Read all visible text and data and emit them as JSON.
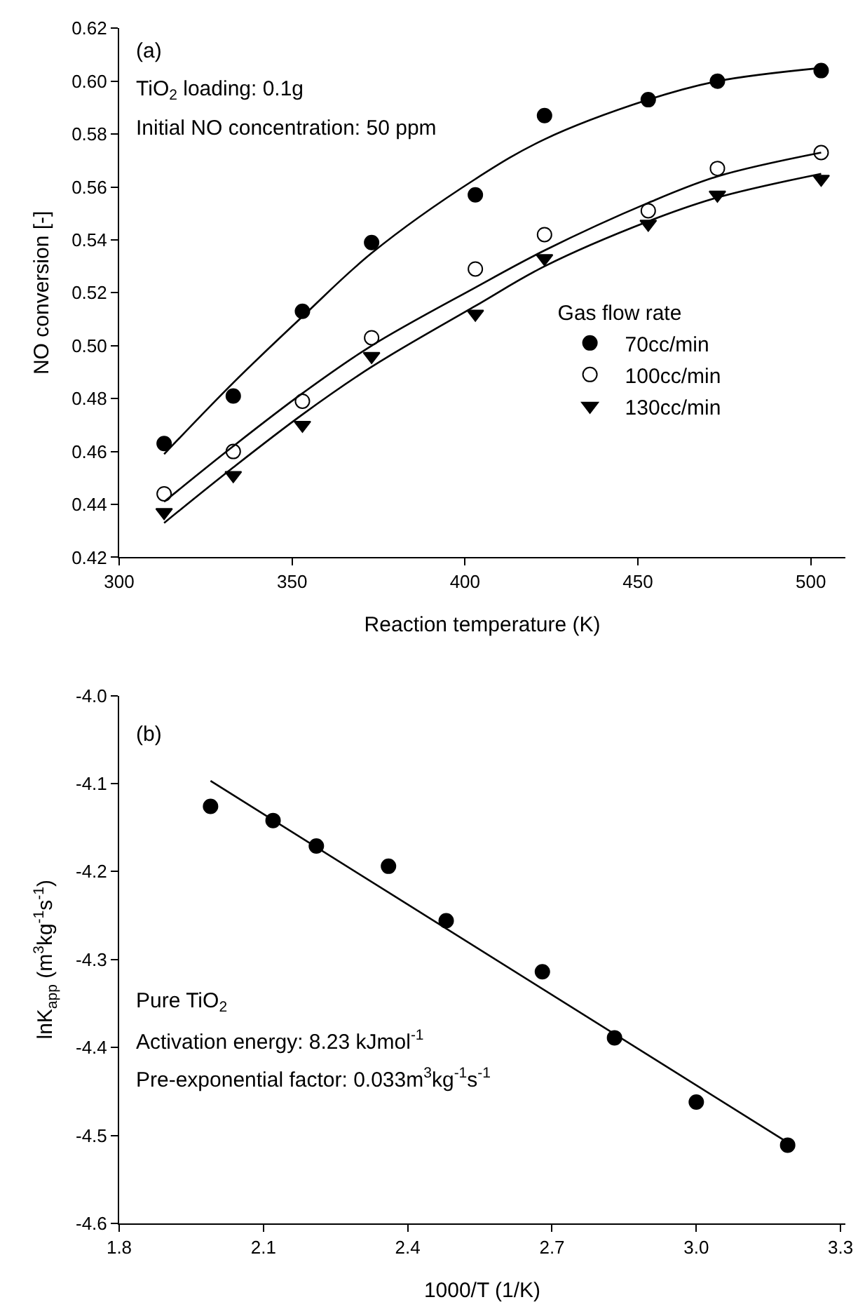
{
  "chart_data": [
    {
      "type": "scatter",
      "xlabel": "Reaction temperature (K)",
      "ylabel": "NO conversion [-]",
      "legend_title": "Gas flow rate",
      "legend": "right",
      "xlim": [
        300,
        510
      ],
      "xticks": [
        300,
        350,
        400,
        450,
        500
      ],
      "ylim": [
        0.42,
        0.62
      ],
      "yticks": [
        {
          "value": 0.42,
          "label": "0.42"
        },
        {
          "value": 0.44,
          "label": "0.44"
        },
        {
          "value": 0.46,
          "label": "0.46"
        },
        {
          "value": 0.48,
          "label": "0.48"
        },
        {
          "value": 0.5,
          "label": "0.50"
        },
        {
          "value": 0.52,
          "label": "0.52"
        },
        {
          "value": 0.54,
          "label": "0.54"
        },
        {
          "value": 0.56,
          "label": "0.56"
        },
        {
          "value": 0.58,
          "label": "0.58"
        },
        {
          "value": 0.6,
          "label": "0.60"
        },
        {
          "value": 0.62,
          "label": "0.62"
        }
      ],
      "annotations": [
        "(a)",
        "TiO$_{2}$ loading: 0.1g",
        "Initial NO concentration: 50 ppm"
      ],
      "series": [
        {
          "name": "70cc/min",
          "marker": "circle",
          "color": "#000000",
          "x": [
            313,
            333,
            353,
            373,
            403,
            423,
            453,
            473,
            503
          ],
          "values": [
            0.463,
            0.481,
            0.513,
            0.539,
            0.557,
            0.587,
            0.593,
            0.6,
            0.604
          ]
        },
        {
          "name": "100cc/min",
          "marker": "circle",
          "color": "#ffffff",
          "x": [
            313,
            333,
            353,
            373,
            403,
            423,
            453,
            473,
            503
          ],
          "values": [
            0.444,
            0.46,
            0.479,
            0.503,
            0.529,
            0.542,
            0.551,
            0.567,
            0.573
          ]
        },
        {
          "name": "130cc/min",
          "marker": "triangle",
          "color": "#000000",
          "x": [
            313,
            333,
            353,
            373,
            403,
            423,
            453,
            473,
            503
          ],
          "values": [
            0.437,
            0.451,
            0.47,
            0.496,
            0.512,
            0.533,
            0.546,
            0.557,
            0.563
          ]
        },
        {
          "type": "line",
          "marker": "none",
          "color": "#000000",
          "x": [
            313,
            333,
            353,
            373,
            403,
            423,
            453,
            473,
            503
          ],
          "values": [
            0.459,
            0.486,
            0.511,
            0.535,
            0.563,
            0.578,
            0.593,
            0.6,
            0.605
          ]
        },
        {
          "type": "line",
          "marker": "none",
          "color": "#000000",
          "x": [
            313,
            333,
            353,
            373,
            403,
            423,
            453,
            473,
            503
          ],
          "values": [
            0.441,
            0.462,
            0.482,
            0.5,
            0.522,
            0.536,
            0.554,
            0.564,
            0.573
          ]
        },
        {
          "type": "line",
          "marker": "none",
          "color": "#000000",
          "x": [
            313,
            333,
            353,
            373,
            403,
            423,
            453,
            473,
            503
          ],
          "values": [
            0.433,
            0.454,
            0.474,
            0.492,
            0.515,
            0.53,
            0.547,
            0.556,
            0.565
          ]
        }
      ]
    },
    {
      "type": "scatter",
      "xlabel": "1000/T (1/K)",
      "ylabel": "lnK$_{app}$ (m$^{3}$kg$^{-1}$s$^{-1}$)",
      "legend": false,
      "xlim": [
        1.8,
        3.31
      ],
      "xticks": [
        1.8,
        2.1,
        2.4,
        2.7,
        {
          "value": 3.0,
          "label": "3.0"
        },
        3.3
      ],
      "ylim": [
        -4.6,
        -4.0
      ],
      "yticks": [
        {
          "value": -4.6,
          "label": "-4.6"
        },
        {
          "value": -4.5,
          "label": "-4.5"
        },
        {
          "value": -4.4,
          "label": "-4.4"
        },
        {
          "value": -4.3,
          "label": "-4.3"
        },
        {
          "value": -4.2,
          "label": "-4.2"
        },
        {
          "value": -4.1,
          "label": "-4.1"
        },
        {
          "value": -4.0,
          "label": "-4.0"
        }
      ],
      "annotations": [
        "(b)",
        "Pure TiO$_{2}$",
        "Activation energy: 8.23 kJmol$^{-1}$",
        "Pre-exponential factor: 0.033m$^{3}$kg$^{-1}$s$^{-1}$"
      ],
      "series": [
        {
          "marker": "circle",
          "color": "#000000",
          "x": [
            1.99,
            2.12,
            2.21,
            2.36,
            2.48,
            2.68,
            2.83,
            3.0,
            3.19
          ],
          "values": [
            -4.126,
            -4.142,
            -4.171,
            -4.194,
            -4.256,
            -4.314,
            -4.389,
            -4.462,
            -4.511
          ]
        },
        {
          "type": "line",
          "marker": "none",
          "color": "#000000",
          "x": [
            1.99,
            3.19
          ],
          "values": [
            -4.097,
            -4.508
          ]
        }
      ]
    }
  ]
}
